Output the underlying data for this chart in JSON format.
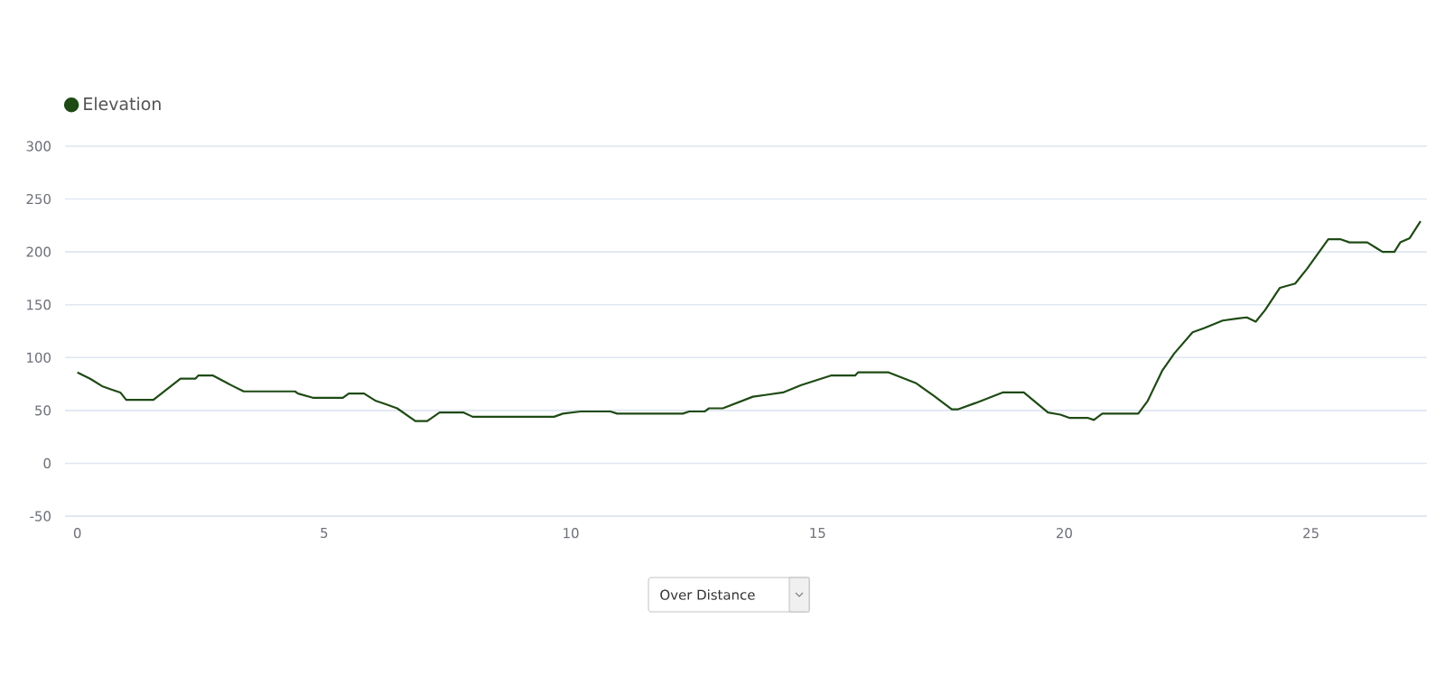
{
  "chart_data": {
    "type": "line",
    "xlim": [
      -0.25,
      27.35
    ],
    "xticks": [
      0,
      5,
      10,
      15,
      20,
      25
    ],
    "ylim": [
      -50,
      300
    ],
    "yticks": [
      -50,
      0,
      50,
      100,
      150,
      200,
      250,
      300
    ],
    "grid": "y",
    "legend": "top left",
    "marker": "none",
    "line_style": "solid",
    "series": [
      {
        "name": "Elevation",
        "color": "#1e4a14",
        "x": [
          0,
          0.26,
          0.5,
          0.68,
          0.87,
          0.99,
          1.54,
          2.09,
          2.39,
          2.45,
          2.75,
          3.07,
          3.37,
          4.41,
          4.47,
          4.77,
          5.38,
          5.5,
          5.81,
          6.05,
          6.24,
          6.48,
          6.85,
          7.09,
          7.34,
          7.83,
          8.01,
          9.66,
          9.84,
          10.2,
          10.8,
          10.94,
          12.27,
          12.4,
          12.71,
          12.8,
          13.08,
          13.69,
          14.0,
          14.3,
          14.67,
          15.27,
          15.76,
          15.82,
          16.44,
          16.99,
          17.35,
          17.72,
          17.84,
          18.2,
          18.75,
          19.18,
          19.67,
          19.92,
          20.1,
          20.47,
          20.6,
          20.77,
          21.5,
          21.69,
          21.99,
          22.23,
          22.6,
          22.84,
          23.21,
          23.52,
          23.7,
          23.88,
          24.07,
          24.37,
          24.68,
          24.92,
          25.35,
          25.59,
          25.78,
          26.14,
          26.45,
          26.69,
          26.81,
          27.0,
          27.22
        ],
        "values": [
          86,
          80,
          73,
          70,
          67,
          60,
          60,
          80,
          80,
          83,
          83,
          75,
          68,
          68,
          66,
          62,
          62,
          66,
          66,
          59,
          56,
          52,
          40,
          40,
          48,
          48,
          44,
          44,
          47,
          49,
          49,
          47,
          47,
          49,
          49,
          52,
          52,
          63,
          65,
          67,
          74,
          83,
          83,
          86,
          86,
          76,
          64,
          51,
          51,
          57,
          67,
          67,
          48,
          46,
          43,
          43,
          41,
          47,
          47,
          59,
          88,
          104,
          124,
          128,
          135,
          137,
          138,
          134,
          145,
          166,
          170,
          184,
          212,
          212,
          209,
          209,
          200,
          200,
          209,
          213,
          229
        ]
      }
    ],
    "annotations": [
      "Over Distance"
    ]
  }
}
